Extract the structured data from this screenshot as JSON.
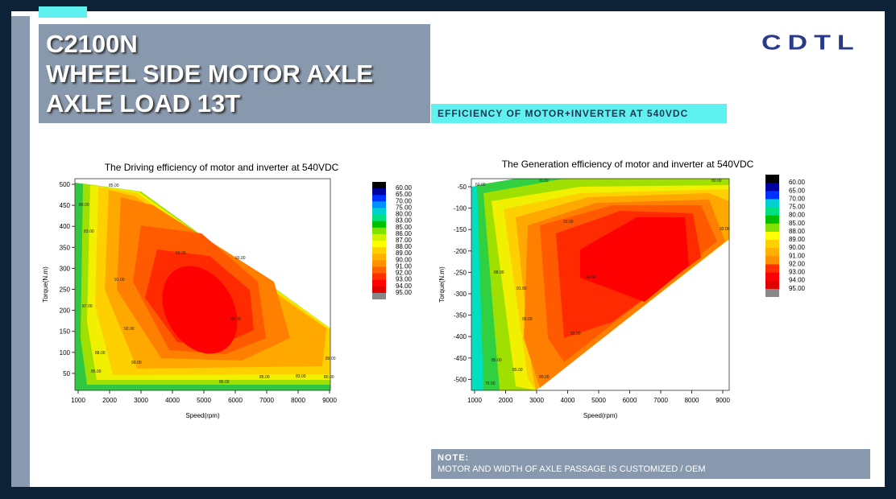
{
  "header": {
    "lines": [
      "C2100N",
      "WHEEL SIDE MOTOR AXLE",
      "AXLE LOAD 13T"
    ]
  },
  "logo": "CDTL",
  "banner": "EFFICIENCY OF MOTOR+INVERTER AT 540VDC",
  "note": {
    "title": "NOTE:",
    "text": "MOTOR AND WIDTH OF AXLE PASSAGE IS CUSTOMIZED / OEM"
  },
  "charts": [
    {
      "title": "The Driving efficiency of motor and inverter at 540VDC",
      "x_label": "Speed(rpm)",
      "y_label": "Torque(N.m)",
      "xticks": [
        "1000",
        "2000",
        "3000",
        "4000",
        "5000",
        "6000",
        "7000",
        "8000",
        "9000"
      ],
      "yticks": [
        "500",
        "450",
        "400",
        "350",
        "300",
        "250",
        "200",
        "150",
        "100",
        "50"
      ],
      "colorbar_labels": [
        "60.00",
        "65.00",
        "70.00",
        "75.00",
        "80.00",
        "83.00",
        "85.00",
        "86.00",
        "87.00",
        "88.00",
        "89.00",
        "90.00",
        "91.00",
        "92.00",
        "93.00",
        "94.00",
        "95.00"
      ],
      "contour_labels": [
        "85.00",
        "80.00",
        "83.00",
        "91.00",
        "93.00",
        "91.00",
        "87.00",
        "93.00",
        "92.00",
        "88.00",
        "90.00",
        "85.00",
        "86.00",
        "85.00",
        "83.00",
        "80.00",
        "89.00"
      ]
    },
    {
      "title": "The Generation efficiency of motor and inverter at 540VDC",
      "x_label": "Speed(rpm)",
      "y_label": "Torque(N.m)",
      "xticks": [
        "1000",
        "2000",
        "3000",
        "4000",
        "5000",
        "6000",
        "7000",
        "8000",
        "9000"
      ],
      "yticks": [
        "-50",
        "-100",
        "-150",
        "-200",
        "-250",
        "-300",
        "-350",
        "-400",
        "-450",
        "-500"
      ],
      "colorbar_labels": [
        "60.00",
        "65.00",
        "70.00",
        "75.00",
        "80.00",
        "85.00",
        "88.00",
        "89.00",
        "90.00",
        "91.00",
        "92.00",
        "93.00",
        "94.00",
        "95.00"
      ],
      "contour_labels": [
        "60.00",
        "70.00",
        "80.00",
        "93.00",
        "92.00",
        "88.00",
        "91.00",
        "94.00",
        "90.00",
        "92.00",
        "80.00",
        "85.00",
        "89.00",
        "75.00"
      ]
    }
  ]
}
